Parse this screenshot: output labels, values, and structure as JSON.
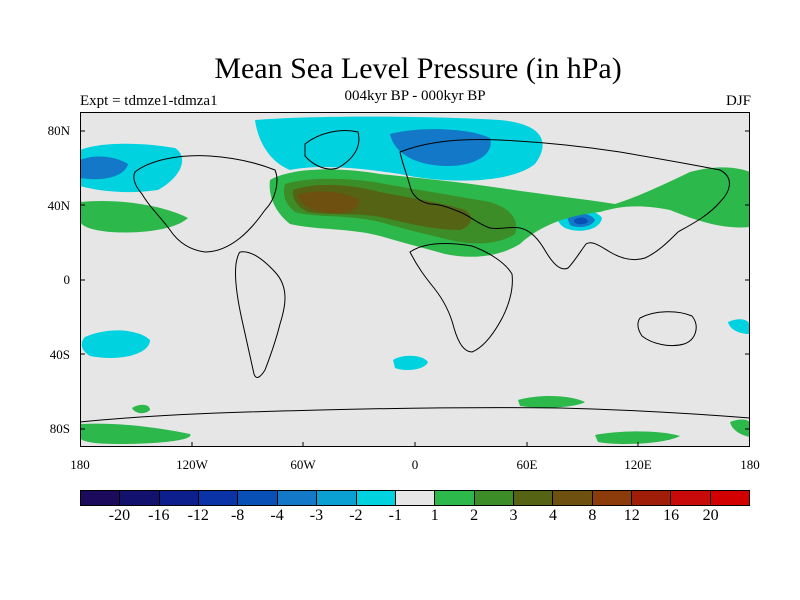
{
  "title": "Mean Sea Level Pressure (in hPa)",
  "subtitle": "004kyr BP - 000kyr BP",
  "experiment": "Expt = tdmze1-tdmza1",
  "season": "DJF",
  "lat_labels": [
    "80N",
    "40N",
    "0",
    "40S",
    "80S"
  ],
  "lon_labels": [
    "180",
    "120W",
    "60W",
    "0",
    "60E",
    "120E",
    "180"
  ],
  "colorbar": {
    "colors": [
      "#1c0a5c",
      "#12126e",
      "#0c1f8c",
      "#0a33a8",
      "#0850b5",
      "#1478c8",
      "#0aa0d2",
      "#00d2e0",
      "#e6e6e6",
      "#2db84b",
      "#3c8c28",
      "#556414",
      "#6e5010",
      "#8c3c0a",
      "#a01e08",
      "#c80a0a",
      "#d20000"
    ],
    "labels": [
      "-20",
      "-16",
      "-12",
      "-8",
      "-4",
      "-3",
      "-2",
      "-1",
      "1",
      "2",
      "3",
      "4",
      "8",
      "12",
      "16",
      "20"
    ]
  },
  "chart_data": {
    "type": "contour_map",
    "variable": "Mean Sea Level Pressure anomaly",
    "units": "hPa",
    "projection": "cylindrical equidistant",
    "lon_range": [
      -180,
      180
    ],
    "lat_range": [
      -90,
      90
    ],
    "levels": [
      -20,
      -16,
      -12,
      -8,
      -4,
      -3,
      -2,
      -1,
      1,
      2,
      3,
      4,
      8,
      12,
      16,
      20
    ],
    "features": [
      {
        "region": "North Atlantic / Europe / North Africa",
        "sign": "positive",
        "max_level": 4
      },
      {
        "region": "Tibetan Plateau",
        "sign": "negative",
        "min_level": -4
      },
      {
        "region": "Arctic / Greenland / Siberia",
        "sign": "negative",
        "min_level": -3
      },
      {
        "region": "North Pacific (west)",
        "sign": "positive",
        "max_level": 2
      },
      {
        "region": "Southern Ocean (Antarctic coast)",
        "sign": "positive",
        "max_level": 2
      }
    ]
  }
}
